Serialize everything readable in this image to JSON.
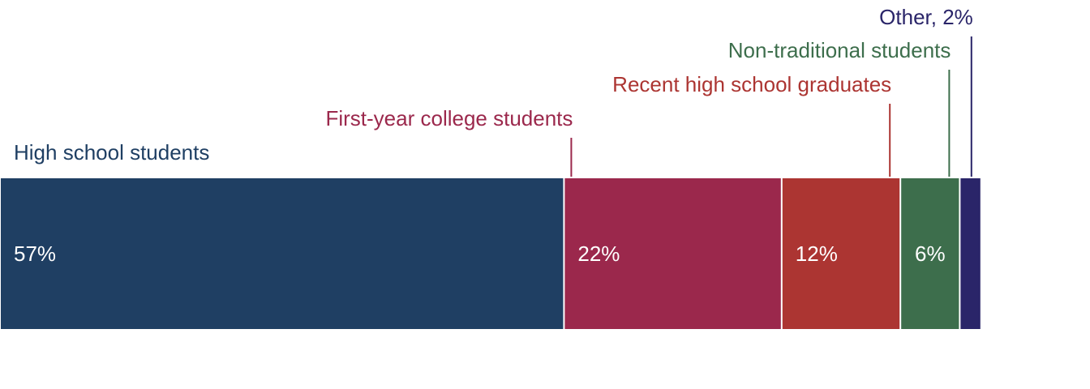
{
  "chart_data": {
    "type": "bar",
    "subtype": "stacked-horizontal-100",
    "title": "",
    "xlabel": "",
    "ylabel": "",
    "xlim": [
      0,
      100
    ],
    "categories": [
      "High school students",
      "First-year college students",
      "Recent high school graduates",
      "Non-traditional students",
      "Other"
    ],
    "values": [
      57,
      22,
      12,
      6,
      2
    ],
    "series": [
      {
        "name": "High school students",
        "value": 57,
        "value_label": "57%",
        "label": "High school students",
        "color": "#1f3f63"
      },
      {
        "name": "First-year college students",
        "value": 22,
        "value_label": "22%",
        "label": "First-year college students",
        "color": "#9b284c"
      },
      {
        "name": "Recent high school graduates",
        "value": 12,
        "value_label": "12%",
        "label": "Recent high school graduates",
        "color": "#ac3532"
      },
      {
        "name": "Non-traditional students",
        "value": 6,
        "value_label": "6%",
        "label": "Non-traditional students",
        "color": "#3d6e4c"
      },
      {
        "name": "Other",
        "value": 2,
        "value_label": "",
        "label": "Other, 2%",
        "color": "#2a2569"
      }
    ]
  }
}
